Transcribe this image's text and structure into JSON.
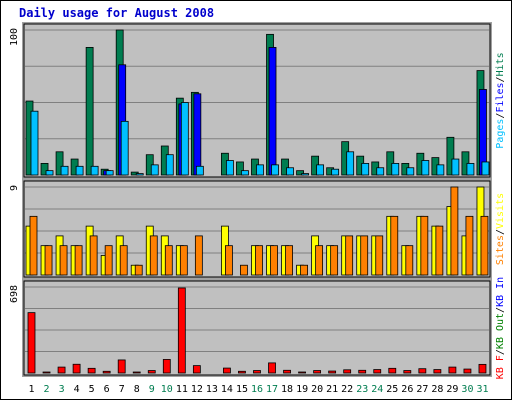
{
  "chart_data": {
    "type": "bar",
    "title": "Daily usage for August 2008",
    "categories": [
      "1",
      "2",
      "3",
      "4",
      "5",
      "6",
      "7",
      "8",
      "9",
      "10",
      "11",
      "12",
      "13",
      "14",
      "15",
      "16",
      "17",
      "18",
      "19",
      "20",
      "21",
      "22",
      "23",
      "24",
      "25",
      "26",
      "27",
      "28",
      "29",
      "30",
      "31"
    ],
    "weekend_days": [
      2,
      3,
      9,
      10,
      16,
      17,
      23,
      24,
      30,
      31
    ],
    "colors": {
      "title": "#0000cc",
      "background": "#c0c0c0",
      "grid": "#808080",
      "hits": "#007d50",
      "files": "#0000ff",
      "pages": "#00c0ff",
      "visits": "#ffff00",
      "sites": "#ff8000",
      "kbin": "#0000ff",
      "kbout": "#008000",
      "kbf": "#ff0000",
      "weekend_label": "#007d50",
      "weekday_label": "#000000"
    },
    "panels": [
      {
        "name": "hits-files-pages",
        "scale_label": "100",
        "ymax": 100,
        "axis_labels": [
          {
            "text": "Hits",
            "color": "#007d50"
          },
          {
            "text": "/",
            "color": "#000000"
          },
          {
            "text": "Files",
            "color": "#0000ff"
          },
          {
            "text": "/",
            "color": "#000000"
          },
          {
            "text": "Pages",
            "color": "#00c0ff"
          }
        ],
        "series": [
          {
            "name": "Hits",
            "color": "#007d50",
            "values": [
              51,
              8,
              16,
              11,
              88,
              4,
              100,
              2,
              14,
              20,
              53,
              57,
              0,
              15,
              9,
              11,
              97,
              11,
              3,
              13,
              5,
              23,
              13,
              9,
              16,
              8,
              15,
              12,
              26,
              16,
              72
            ]
          },
          {
            "name": "Files",
            "color": "#0000ff",
            "values": [
              0,
              0,
              0,
              0,
              0,
              3,
              76,
              0,
              0,
              0,
              49,
              56,
              0,
              0,
              0,
              0,
              88,
              0,
              0,
              0,
              0,
              0,
              0,
              0,
              0,
              0,
              0,
              0,
              0,
              0,
              59
            ]
          },
          {
            "name": "Pages",
            "color": "#00c0ff",
            "values": [
              44,
              3,
              6,
              6,
              6,
              3,
              37,
              1,
              7,
              14,
              50,
              6,
              0,
              10,
              3,
              7,
              7,
              5,
              1,
              7,
              4,
              16,
              8,
              5,
              8,
              5,
              10,
              7,
              11,
              8,
              9
            ]
          }
        ]
      },
      {
        "name": "visits-sites",
        "scale_label": "9",
        "ymax": 9,
        "axis_labels": [
          {
            "text": "Visits",
            "color": "#ffff00"
          },
          {
            "text": "/",
            "color": "#000000"
          },
          {
            "text": "Sites",
            "color": "#ff8000"
          }
        ],
        "series": [
          {
            "name": "Visits",
            "color": "#ffff00",
            "values": [
              5,
              3,
              4,
              3,
              5,
              2,
              4,
              1,
              5,
              4,
              3,
              0,
              0,
              5,
              0,
              3,
              3,
              3,
              1,
              4,
              3,
              4,
              4,
              4,
              6,
              3,
              6,
              5,
              7,
              4,
              9
            ]
          },
          {
            "name": "Sites",
            "color": "#ff8000",
            "values": [
              6,
              3,
              3,
              3,
              4,
              3,
              3,
              1,
              4,
              3,
              3,
              4,
              0,
              3,
              1,
              3,
              3,
              3,
              1,
              3,
              3,
              4,
              4,
              4,
              6,
              3,
              6,
              5,
              9,
              6,
              6
            ]
          }
        ]
      },
      {
        "name": "kb-in-out-f",
        "scale_label": "698",
        "ymax": 698,
        "axis_labels": [
          {
            "text": "KB In",
            "color": "#0000ff"
          },
          {
            "text": "/",
            "color": "#000000"
          },
          {
            "text": "KB Out",
            "color": "#008000"
          },
          {
            "text": "/",
            "color": "#000000"
          },
          {
            "text": "KB F",
            "color": "#ff0000"
          }
        ],
        "series": [
          {
            "name": "KB F",
            "color": "#ff0000",
            "values": [
              490,
              5,
              48,
              71,
              38,
              14,
              106,
              5,
              20,
              110,
              690,
              60,
              0,
              40,
              14,
              20,
              82,
              22,
              8,
              20,
              16,
              26,
              22,
              28,
              38,
              20,
              35,
              28,
              48,
              32,
              70
            ]
          }
        ]
      }
    ]
  }
}
